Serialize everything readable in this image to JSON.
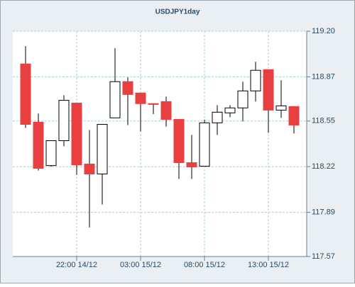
{
  "chart_data": {
    "type": "candlestick",
    "title": "USDJPY1day",
    "categories": [
      null,
      null,
      null,
      null,
      "22:00 14/12",
      null,
      null,
      null,
      null,
      "03:00 15/12",
      null,
      null,
      null,
      null,
      "08:00 15/12",
      null,
      null,
      null,
      null,
      "13:00 15/12",
      null,
      null
    ],
    "open": [
      118.963,
      118.542,
      118.228,
      118.408,
      118.68,
      118.239,
      118.167,
      118.573,
      118.835,
      118.753,
      118.676,
      118.691,
      118.562,
      118.249,
      118.223,
      118.537,
      118.609,
      118.645,
      118.768,
      118.922,
      118.629,
      118.655
    ],
    "close": [
      118.526,
      118.208,
      118.408,
      118.7,
      118.233,
      118.167,
      118.526,
      118.835,
      118.742,
      118.676,
      118.67,
      118.562,
      118.249,
      118.218,
      118.537,
      118.614,
      118.645,
      118.768,
      118.917,
      118.629,
      118.66,
      118.521
    ],
    "high": [
      119.092,
      118.604,
      118.41,
      118.737,
      118.68,
      118.485,
      118.526,
      119.077,
      118.866,
      118.753,
      118.68,
      118.727,
      118.562,
      118.449,
      118.56,
      118.665,
      118.665,
      118.835,
      118.979,
      118.922,
      118.845,
      118.655
    ],
    "low": [
      118.5,
      118.192,
      118.22,
      118.367,
      118.161,
      117.781,
      117.946,
      118.573,
      118.521,
      118.475,
      118.6,
      118.51,
      118.131,
      118.131,
      118.223,
      118.449,
      118.578,
      118.547,
      118.691,
      118.465,
      118.573,
      118.46
    ],
    "up_color": "#ffffff",
    "down_color": "#e84040",
    "ylim": [
      117.57,
      119.2
    ],
    "yticks": [
      117.57,
      117.89,
      118.22,
      118.55,
      118.87,
      {
        "value": 119.2,
        "label": "119.20"
      }
    ],
    "grid": true
  }
}
